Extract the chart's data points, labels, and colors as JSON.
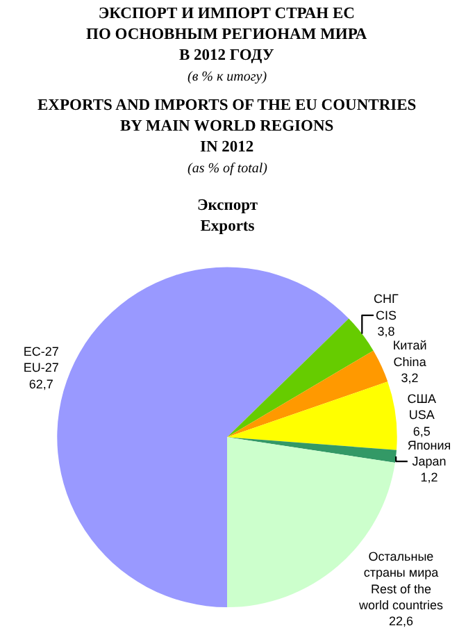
{
  "chart_data": {
    "type": "pie",
    "title": "ЭКСПОРТ И ИМПОРТ СТРАН ЕС\nПО ОСНОВНЫМ РЕГИОНАМ МИРА\nВ 2012 ГОДУ",
    "subtitle": "(в % к итогу)",
    "annotations": [
      "EXPORTS AND IMPORTS OF THE EU COUNTRIES\nBY MAIN WORLD REGIONS\nIN 2012",
      "(as % of total)",
      "Экспорт\nExports"
    ],
    "categories": [
      "ЕС-27\nEU-27",
      "СНГ\nCIS",
      "Китай\nChina",
      "США\nUSA",
      "Япония\nJapan",
      "Остальные\nстраны мира\nRest of the\nworld countries"
    ],
    "values": [
      62.7,
      3.8,
      3.2,
      6.5,
      1.2,
      22.6
    ],
    "value_labels": [
      "62,7",
      "3,8",
      "3,2",
      "6,5",
      "1,2",
      "22,6"
    ],
    "colors": [
      "#9999ff",
      "#66cc00",
      "#ff9900",
      "#ffff00",
      "#339966",
      "#ccffcc"
    ],
    "legend": false
  }
}
